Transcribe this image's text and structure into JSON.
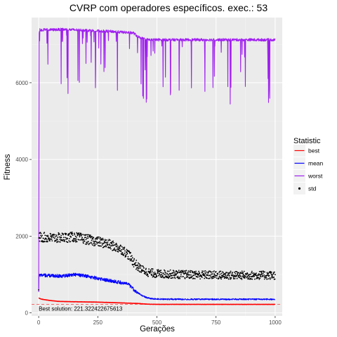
{
  "chart_data": {
    "type": "line",
    "title": "CVRP com operadores específicos. exec.: 53",
    "xlabel": "Gerações",
    "ylabel": "Fitness",
    "xlim": [
      -30,
      1030
    ],
    "ylim": [
      -80,
      7700
    ],
    "x_ticks": [
      0,
      250,
      500,
      750,
      1000
    ],
    "y_ticks": [
      0,
      2000,
      4000,
      6000
    ],
    "grid": true,
    "legend": {
      "title": "Statistic",
      "placement": "right",
      "entries": [
        {
          "name": "best",
          "color": "#ff0000",
          "style": "line"
        },
        {
          "name": "mean",
          "color": "#0000ff",
          "style": "line"
        },
        {
          "name": "worst",
          "color": "#a020f0",
          "style": "line"
        },
        {
          "name": "std",
          "color": "#000000",
          "style": "point"
        }
      ]
    },
    "series": [
      {
        "name": "best",
        "color": "#ff0000",
        "style": "line",
        "x": [
          0,
          10,
          40,
          80,
          150,
          250,
          350,
          420,
          440,
          470,
          500,
          600,
          800,
          1000
        ],
        "y": [
          390,
          360,
          330,
          300,
          290,
          280,
          260,
          245,
          235,
          226,
          222,
          222,
          221.3,
          221.3
        ]
      },
      {
        "name": "mean",
        "color": "#0000ff",
        "style": "line",
        "x": [
          0,
          1,
          3,
          50,
          100,
          150,
          200,
          250,
          300,
          350,
          380,
          400,
          420,
          440,
          460,
          480,
          500,
          600,
          700,
          800,
          900,
          1000
        ],
        "y": [
          550,
          980,
          990,
          970,
          960,
          1000,
          960,
          900,
          840,
          790,
          740,
          620,
          520,
          440,
          390,
          370,
          360,
          355,
          355,
          355,
          355,
          355
        ]
      },
      {
        "name": "worst",
        "color": "#a020f0",
        "style": "line",
        "x": [
          0,
          2,
          4,
          50,
          100,
          150,
          200,
          250,
          300,
          350,
          400,
          420,
          440,
          460,
          500,
          600,
          700,
          800,
          900,
          1000
        ],
        "y": [
          550,
          7300,
          7380,
          7380,
          7390,
          7380,
          7370,
          7350,
          7340,
          7320,
          7300,
          7200,
          7150,
          7120,
          7120,
          7120,
          7120,
          7120,
          7120,
          7120
        ]
      },
      {
        "name": "std",
        "color": "#000000",
        "style": "point",
        "x": [
          0,
          1,
          3,
          50,
          100,
          150,
          200,
          250,
          300,
          350,
          380,
          400,
          420,
          440,
          460,
          480,
          500,
          600,
          700,
          800,
          900,
          1000
        ],
        "y": [
          600,
          1950,
          1980,
          1950,
          1960,
          1980,
          1920,
          1860,
          1780,
          1660,
          1520,
          1340,
          1200,
          1120,
          1060,
          1040,
          1020,
          1000,
          990,
          980,
          980,
          980
        ]
      }
    ],
    "annotations": [
      {
        "text": "Best solution: 221.322422675613",
        "x": 0,
        "y": 221.322422675613,
        "line_color": "#ff0000",
        "line_style": "dashed"
      }
    ]
  }
}
